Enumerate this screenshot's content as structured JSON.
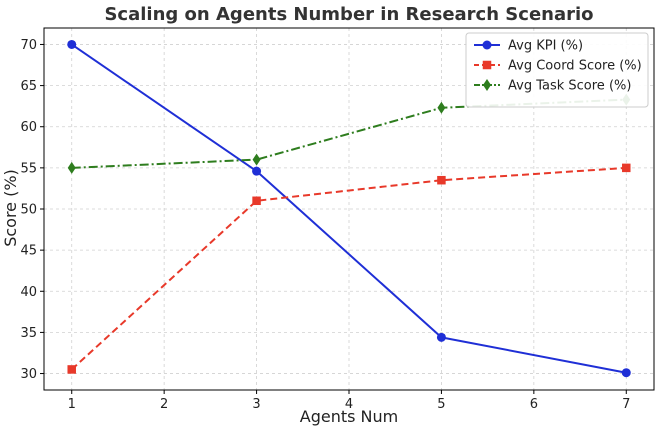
{
  "chart_data": {
    "type": "line",
    "title": "Scaling on Agents Number in Research Scenario",
    "xlabel": "Agents Num",
    "ylabel": "Score (%)",
    "xlim": [
      0.7,
      7.3
    ],
    "ylim": [
      28,
      72
    ],
    "xticks": [
      1,
      2,
      3,
      4,
      5,
      6,
      7
    ],
    "yticks": [
      30,
      35,
      40,
      45,
      50,
      55,
      60,
      65,
      70
    ],
    "grid": true,
    "legend_position": "top-right",
    "series": [
      {
        "name": "Avg KPI (%)",
        "x": [
          1,
          3,
          5,
          7
        ],
        "y": [
          70,
          54.6,
          34.4,
          30.1
        ],
        "color": "#1f2fd6",
        "line_style": "solid",
        "marker": "circle"
      },
      {
        "name": "Avg Coord Score (%)",
        "x": [
          1,
          3,
          5,
          7
        ],
        "y": [
          30.5,
          51,
          53.5,
          55
        ],
        "color": "#e8392a",
        "line_style": "dashed",
        "marker": "square"
      },
      {
        "name": "Avg Task Score (%)",
        "x": [
          1,
          3,
          5,
          7
        ],
        "y": [
          55,
          56,
          62.3,
          63.3
        ],
        "color": "#2e7d1e",
        "line_style": "dashdot",
        "marker": "diamond"
      }
    ]
  }
}
